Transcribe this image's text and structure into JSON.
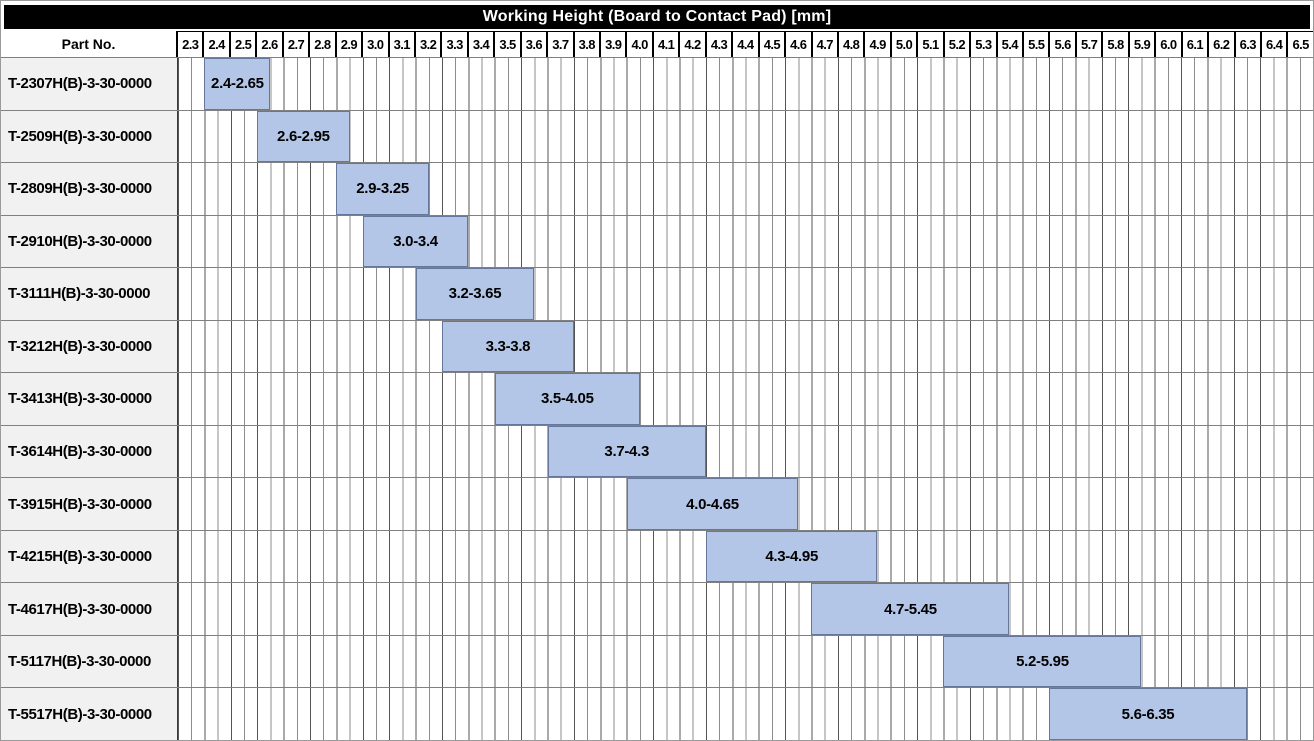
{
  "header": {
    "part_no": "Part No."
  },
  "colors": {
    "title_bg": "#000000",
    "title_text": "#ffffff",
    "part_cell_bg": "#f1f1f1",
    "bar_fill": "#b4c6e7",
    "bar_border": "#67779b",
    "row_border": "#808080",
    "grid_line_major": "#555555",
    "grid_line_minor": "#8d8d8d"
  },
  "chart_data": {
    "type": "bar",
    "subtype": "horizontal-range",
    "title": "Working Height (Board to Contact Pad) [mm]",
    "unit": "mm",
    "grid": true,
    "legend_position": "none",
    "x_axis": {
      "min": 2.3,
      "max": 6.5,
      "step": 0.1,
      "right_edge": 6.6,
      "minor_grid_step": 0.05,
      "tick_labels": [
        "2.3",
        "2.4",
        "2.5",
        "2.6",
        "2.7",
        "2.8",
        "2.9",
        "3.0",
        "3.1",
        "3.2",
        "3.3",
        "3.4",
        "3.5",
        "3.6",
        "3.7",
        "3.8",
        "3.9",
        "4.0",
        "4.1",
        "4.2",
        "4.3",
        "4.4",
        "4.5",
        "4.6",
        "4.7",
        "4.8",
        "4.9",
        "5.0",
        "5.1",
        "5.2",
        "5.3",
        "5.4",
        "5.5",
        "5.6",
        "5.7",
        "5.8",
        "5.9",
        "6.0",
        "6.1",
        "6.2",
        "6.3",
        "6.4",
        "6.5"
      ]
    },
    "categories_header": "Part No.",
    "rows": [
      {
        "part_no": "T-2307H(B)-3-30-0000",
        "start": 2.4,
        "end": 2.65,
        "label": "2.4-2.65"
      },
      {
        "part_no": "T-2509H(B)-3-30-0000",
        "start": 2.6,
        "end": 2.95,
        "label": "2.6-2.95"
      },
      {
        "part_no": "T-2809H(B)-3-30-0000",
        "start": 2.9,
        "end": 3.25,
        "label": "2.9-3.25"
      },
      {
        "part_no": "T-2910H(B)-3-30-0000",
        "start": 3.0,
        "end": 3.4,
        "label": "3.0-3.4"
      },
      {
        "part_no": "T-3111H(B)-3-30-0000",
        "start": 3.2,
        "end": 3.65,
        "label": "3.2-3.65"
      },
      {
        "part_no": "T-3212H(B)-3-30-0000",
        "start": 3.3,
        "end": 3.8,
        "label": "3.3-3.8"
      },
      {
        "part_no": "T-3413H(B)-3-30-0000",
        "start": 3.5,
        "end": 4.05,
        "label": "3.5-4.05"
      },
      {
        "part_no": "T-3614H(B)-3-30-0000",
        "start": 3.7,
        "end": 4.3,
        "label": "3.7-4.3"
      },
      {
        "part_no": "T-3915H(B)-3-30-0000",
        "start": 4.0,
        "end": 4.65,
        "label": "4.0-4.65"
      },
      {
        "part_no": "T-4215H(B)-3-30-0000",
        "start": 4.3,
        "end": 4.95,
        "label": "4.3-4.95"
      },
      {
        "part_no": "T-4617H(B)-3-30-0000",
        "start": 4.7,
        "end": 5.45,
        "label": "4.7-5.45"
      },
      {
        "part_no": "T-5117H(B)-3-30-0000",
        "start": 5.2,
        "end": 5.95,
        "label": "5.2-5.95"
      },
      {
        "part_no": "T-5517H(B)-3-30-0000",
        "start": 5.6,
        "end": 6.35,
        "label": "5.6-6.35"
      }
    ]
  }
}
